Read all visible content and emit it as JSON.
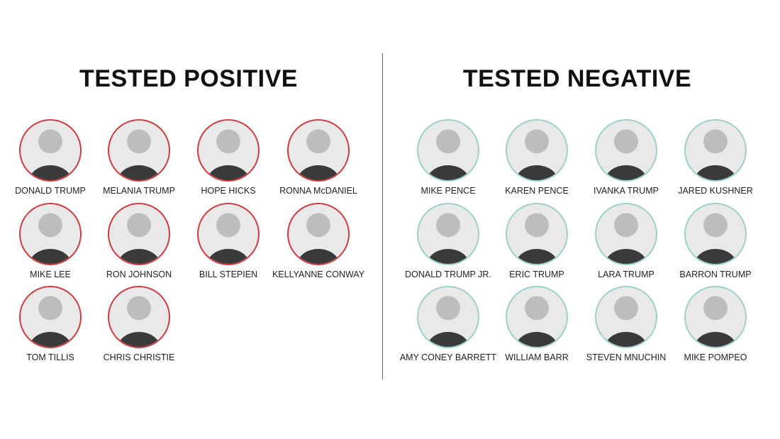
{
  "positive": {
    "title": "TESTED POSITIVE",
    "ring_color": "#d33a3f",
    "people": [
      "DONALD TRUMP",
      "MELANIA TRUMP",
      "HOPE HICKS",
      "RONNA McDANIEL",
      "MIKE LEE",
      "RON JOHNSON",
      "BILL STEPIEN",
      "KELLYANNE CONWAY",
      "TOM TILLIS",
      "CHRIS CHRISTIE"
    ]
  },
  "negative": {
    "title": "TESTED NEGATIVE",
    "ring_color": "#9cd0cb",
    "people": [
      "MIKE PENCE",
      "KAREN PENCE",
      "IVANKA TRUMP",
      "JARED KUSHNER",
      "DONALD TRUMP JR.",
      "ERIC TRUMP",
      "LARA TRUMP",
      "BARRON TRUMP",
      "AMY CONEY BARRETT",
      "WILLIAM BARR",
      "STEVEN MNUCHIN",
      "MIKE POMPEO"
    ]
  }
}
